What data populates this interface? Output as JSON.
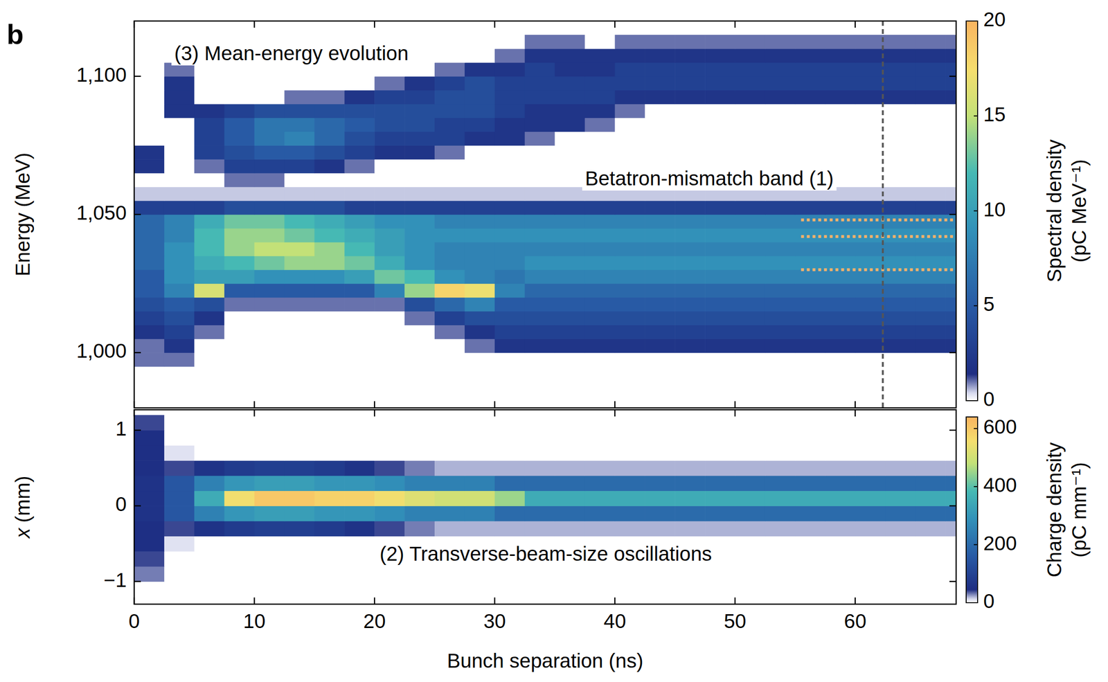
{
  "panel_label": "b",
  "chart_data": [
    {
      "type": "heatmap",
      "ylabel": "Energy (MeV)",
      "annotations": [
        "(3) Mean-energy evolution",
        "Betatron-mismatch band (1)"
      ],
      "xlim": [
        0,
        68.4
      ],
      "ylim": [
        980,
        1120
      ],
      "xticks": [
        0,
        10,
        20,
        30,
        40,
        50,
        60
      ],
      "yticks": [
        {
          "value": 1000,
          "label": "1,000"
        },
        {
          "value": 1050,
          "label": "1,050"
        },
        {
          "value": 1100,
          "label": "1,100"
        }
      ],
      "tick_labels": "y",
      "vline": 62.3,
      "hlines": [
        1030,
        1042,
        1048
      ],
      "hline_range": [
        55.5,
        69
      ],
      "x_bins": [
        0,
        2.5,
        5,
        7.5,
        10,
        12.5,
        15,
        17.5,
        20,
        22.5,
        25,
        27.5,
        30,
        32.5,
        35,
        37.5,
        40,
        42.5,
        45,
        47.5,
        50,
        52.5,
        55,
        57.5,
        60,
        62.5,
        65,
        67.5,
        70
      ],
      "y_bins": [
        995,
        1000,
        1005,
        1010,
        1015,
        1020,
        1025,
        1030,
        1035,
        1040,
        1045,
        1050,
        1055,
        1060,
        1065,
        1070,
        1075,
        1080,
        1085,
        1090,
        1095,
        1100,
        1105,
        1110,
        1115
      ],
      "cells": [
        [
          1,
          1,
          0,
          0,
          0,
          0,
          0,
          0,
          0,
          0,
          0,
          0,
          0,
          0,
          0,
          0,
          0,
          0,
          0,
          0,
          0,
          0,
          0,
          0,
          0,
          0,
          0,
          0
        ],
        [
          1,
          2,
          0,
          0,
          0,
          0,
          0,
          0,
          0,
          0,
          0,
          1,
          2,
          2,
          2,
          2,
          2,
          2,
          2,
          2,
          2,
          2,
          2,
          2,
          2,
          2,
          2,
          2
        ],
        [
          2,
          3,
          1,
          0,
          0,
          0,
          0,
          0,
          0,
          0,
          1,
          2,
          3,
          3,
          3,
          3,
          3,
          3,
          3,
          3,
          3,
          3,
          3,
          3,
          3,
          3,
          3,
          3
        ],
        [
          3,
          4,
          2,
          0,
          0,
          0,
          0,
          0,
          0,
          1,
          3,
          4,
          4,
          4,
          4,
          4,
          4,
          4,
          4,
          4,
          4,
          4,
          4,
          4,
          4,
          4,
          4,
          4
        ],
        [
          4,
          5,
          4,
          1,
          1,
          1,
          1,
          1,
          1,
          4,
          6,
          8,
          5,
          5,
          5,
          5,
          5,
          5,
          5,
          5,
          5,
          5,
          5,
          5,
          5,
          5,
          5,
          5
        ],
        [
          5,
          8,
          16,
          5,
          5,
          5,
          5,
          5,
          8,
          14,
          18,
          17,
          8,
          6,
          6,
          6,
          6,
          6,
          6,
          6,
          6,
          6,
          6,
          6,
          6,
          6,
          6,
          6
        ],
        [
          5,
          9,
          10,
          10,
          9,
          9,
          9,
          10,
          13,
          12,
          9,
          8,
          7,
          8,
          8,
          8,
          8,
          8,
          8,
          8,
          8,
          8,
          8,
          8,
          8,
          8,
          8,
          8
        ],
        [
          6,
          9,
          11,
          12,
          13,
          14,
          14,
          13,
          11,
          9,
          8,
          8,
          8,
          9,
          9,
          9,
          9,
          9,
          9,
          9,
          9,
          9,
          9,
          9,
          9,
          9,
          9,
          9
        ],
        [
          6,
          9,
          12,
          14,
          15,
          15,
          14,
          12,
          10,
          9,
          8,
          8,
          8,
          8,
          8,
          8,
          8,
          8,
          8,
          8,
          8,
          8,
          8,
          8,
          8,
          8,
          8,
          8
        ],
        [
          6,
          8,
          12,
          14,
          14,
          13,
          12,
          11,
          10,
          9,
          9,
          9,
          9,
          9,
          9,
          9,
          9,
          9,
          9,
          9,
          9,
          9,
          9,
          9,
          9,
          9,
          9,
          9
        ],
        [
          6,
          8,
          11,
          13,
          13,
          12,
          11,
          10,
          9,
          9,
          8,
          8,
          8,
          8,
          8,
          8,
          8,
          8,
          8,
          8,
          8,
          8,
          8,
          8,
          8,
          8,
          8,
          8
        ],
        [
          3,
          3,
          3,
          4,
          4,
          4,
          4,
          3,
          3,
          3,
          3,
          3,
          3,
          3,
          3,
          3,
          3,
          3,
          3,
          3,
          3,
          3,
          3,
          3,
          3,
          3,
          3,
          3
        ],
        [
          0.5,
          0.5,
          0.5,
          0.5,
          0.5,
          0.5,
          0.5,
          0.5,
          0.5,
          0.5,
          0.5,
          0.5,
          0.5,
          0.5,
          0.5,
          0.5,
          0.5,
          0.5,
          0.5,
          0.5,
          0.5,
          0.5,
          0.5,
          0.5,
          0.5,
          0.5,
          0.5,
          0.5
        ],
        [
          0,
          0,
          0,
          1,
          1,
          0,
          0,
          0,
          0,
          0,
          0,
          0,
          0,
          0,
          0,
          0,
          0,
          0,
          0,
          0,
          0,
          0,
          0,
          0,
          0,
          0,
          0,
          0
        ],
        [
          2,
          0,
          1,
          3,
          3,
          3,
          2,
          1,
          0,
          0,
          0,
          0,
          0,
          0,
          0,
          0,
          0,
          0,
          0,
          0,
          0,
          0,
          0,
          0,
          0,
          0,
          0,
          0
        ],
        [
          2,
          0,
          3,
          4,
          5,
          5,
          4,
          3,
          2,
          2,
          1,
          0,
          0,
          0,
          0,
          0,
          0,
          0,
          0,
          0,
          0,
          0,
          0,
          0,
          0,
          0,
          0,
          0
        ],
        [
          0,
          0,
          3,
          5,
          7,
          8,
          6,
          4,
          3,
          3,
          3,
          2,
          2,
          1,
          0,
          0,
          0,
          0,
          0,
          0,
          0,
          0,
          0,
          0,
          0,
          0,
          0,
          0
        ],
        [
          0,
          0,
          3,
          5,
          7,
          7,
          6,
          5,
          4,
          4,
          3,
          3,
          2,
          2,
          2,
          1,
          0,
          0,
          0,
          0,
          0,
          0,
          0,
          0,
          0,
          0,
          0,
          0
        ],
        [
          0,
          2,
          2,
          3,
          4,
          4,
          4,
          4,
          4,
          4,
          4,
          4,
          3,
          2,
          2,
          2,
          1,
          0,
          0,
          0,
          0,
          0,
          0,
          0,
          0,
          0,
          0,
          0
        ],
        [
          0,
          2,
          0,
          0,
          0,
          1,
          1,
          2,
          3,
          3,
          4,
          4,
          3,
          3,
          3,
          3,
          2,
          2,
          2,
          2,
          2,
          2,
          2,
          2,
          2,
          2,
          2,
          2
        ],
        [
          0,
          2,
          0,
          0,
          0,
          0,
          0,
          0,
          1,
          2,
          3,
          4,
          3,
          3,
          3,
          3,
          3,
          3,
          3,
          3,
          3,
          3,
          3,
          3,
          3,
          3,
          3,
          3
        ],
        [
          0,
          1,
          0,
          0,
          0,
          0,
          0,
          0,
          0,
          0,
          1,
          2,
          2,
          3,
          2,
          2,
          3,
          3,
          3,
          3,
          3,
          3,
          3,
          3,
          3,
          3,
          3,
          3
        ],
        [
          0,
          0,
          0,
          0,
          0,
          0,
          0,
          0,
          0,
          0,
          0,
          0,
          1,
          2,
          2,
          2,
          2,
          2,
          2,
          2,
          2,
          2,
          2,
          2,
          2,
          2,
          2,
          2
        ],
        [
          0,
          0,
          0,
          0,
          0,
          0,
          0,
          0,
          0,
          0,
          0,
          0,
          0,
          1,
          1,
          0,
          1,
          1,
          1,
          1,
          1,
          1,
          1,
          1,
          1,
          1,
          1,
          1
        ]
      ],
      "colorbar": {
        "label": "Spectral density (pC MeV⁻¹)",
        "range": [
          0,
          20
        ],
        "ticks": [
          0,
          5,
          10,
          15,
          20
        ]
      }
    },
    {
      "type": "heatmap",
      "xlabel": "Bunch separation (ns)",
      "ylabel": "x (mm)",
      "annotations": [
        "(2) Transverse-beam-size oscillations"
      ],
      "xlim": [
        0,
        68.4
      ],
      "ylim": [
        -1.3,
        1.27
      ],
      "xticks": [
        0,
        10,
        20,
        30,
        40,
        50,
        60
      ],
      "yticks": [
        {
          "value": -1,
          "label": "−1"
        },
        0,
        1
      ],
      "x_bins": [
        0,
        2.5,
        5,
        7.5,
        10,
        12.5,
        15,
        17.5,
        20,
        22.5,
        25,
        27.5,
        30,
        32.5,
        35,
        37.5,
        40,
        42.5,
        45,
        47.5,
        50,
        52.5,
        55,
        57.5,
        60,
        62.5,
        65,
        67.5,
        70
      ],
      "y_bins": [
        -1.2,
        -1,
        -0.8,
        -0.6,
        -0.4,
        -0.2,
        0,
        0.2,
        0.4,
        0.6,
        0.8,
        1,
        1.2
      ],
      "cells": [
        [
          0,
          0,
          0,
          0,
          0,
          0,
          0,
          0,
          0,
          0,
          0,
          0,
          0,
          0,
          0,
          0,
          0,
          0,
          0,
          0,
          0,
          0,
          0,
          0,
          0,
          0,
          0,
          0
        ],
        [
          30,
          0,
          0,
          0,
          0,
          0,
          0,
          0,
          0,
          0,
          0,
          0,
          0,
          0,
          0,
          0,
          0,
          0,
          0,
          0,
          0,
          0,
          0,
          0,
          0,
          0,
          0,
          0
        ],
        [
          40,
          0,
          0,
          0,
          0,
          0,
          0,
          0,
          0,
          0,
          0,
          0,
          0,
          0,
          0,
          0,
          0,
          0,
          0,
          0,
          0,
          0,
          0,
          0,
          0,
          0,
          0,
          0
        ],
        [
          50,
          10,
          0,
          0,
          0,
          0,
          0,
          0,
          0,
          0,
          0,
          0,
          0,
          0,
          0,
          0,
          0,
          0,
          0,
          0,
          0,
          0,
          0,
          0,
          0,
          0,
          0,
          0
        ],
        [
          50,
          40,
          60,
          80,
          90,
          90,
          80,
          60,
          40,
          30,
          20,
          20,
          20,
          20,
          20,
          20,
          20,
          20,
          20,
          20,
          20,
          20,
          20,
          20,
          20,
          20,
          20,
          20
        ],
        [
          60,
          150,
          250,
          300,
          320,
          320,
          300,
          300,
          280,
          250,
          250,
          250,
          200,
          200,
          200,
          200,
          200,
          200,
          200,
          200,
          200,
          200,
          200,
          200,
          200,
          200,
          200,
          200
        ],
        [
          60,
          150,
          350,
          550,
          600,
          600,
          580,
          580,
          550,
          520,
          500,
          500,
          450,
          350,
          350,
          350,
          350,
          350,
          350,
          350,
          350,
          350,
          350,
          350,
          350,
          350,
          350,
          350
        ],
        [
          60,
          150,
          250,
          300,
          320,
          320,
          300,
          300,
          280,
          250,
          250,
          250,
          200,
          200,
          200,
          200,
          200,
          200,
          200,
          200,
          200,
          200,
          200,
          200,
          200,
          200,
          200,
          200
        ],
        [
          50,
          40,
          60,
          80,
          90,
          90,
          80,
          60,
          40,
          30,
          20,
          20,
          20,
          20,
          20,
          20,
          20,
          20,
          20,
          20,
          20,
          20,
          20,
          20,
          20,
          20,
          20,
          20
        ],
        [
          50,
          10,
          0,
          0,
          0,
          0,
          0,
          0,
          0,
          0,
          0,
          0,
          0,
          0,
          0,
          0,
          0,
          0,
          0,
          0,
          0,
          0,
          0,
          0,
          0,
          0,
          0,
          0
        ],
        [
          50,
          0,
          0,
          0,
          0,
          0,
          0,
          0,
          0,
          0,
          0,
          0,
          0,
          0,
          0,
          0,
          0,
          0,
          0,
          0,
          0,
          0,
          0,
          0,
          0,
          0,
          0,
          0
        ],
        [
          40,
          0,
          0,
          0,
          0,
          0,
          0,
          0,
          0,
          0,
          0,
          0,
          0,
          0,
          0,
          0,
          0,
          0,
          0,
          0,
          0,
          0,
          0,
          0,
          0,
          0,
          0,
          0
        ]
      ],
      "colorbar": {
        "label": "Charge density (pC mm⁻¹)",
        "range": [
          0,
          640
        ],
        "ticks": [
          0,
          200,
          400,
          600
        ]
      }
    }
  ]
}
